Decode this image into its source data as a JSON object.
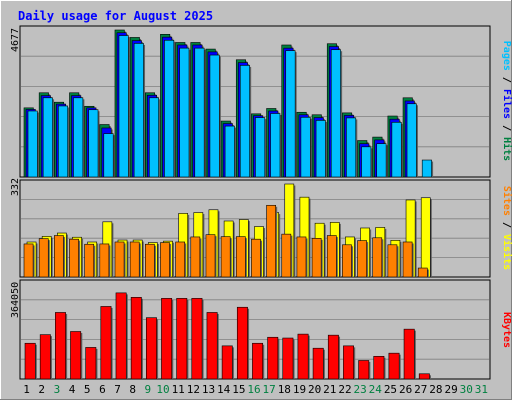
{
  "chart_data": [
    {
      "type": "bar",
      "title": "Daily usage for August 2025",
      "ylabel_parts": [
        {
          "text": "Pages",
          "color": "#00c0ff"
        },
        {
          "text": " / ",
          "color": "#000000"
        },
        {
          "text": "Files",
          "color": "#0000ff"
        },
        {
          "text": " / ",
          "color": "#000000"
        },
        {
          "text": "Hits",
          "color": "#008040"
        }
      ],
      "ymax_label": "4677",
      "ylim": [
        0,
        4677
      ],
      "categories": [
        "1",
        "2",
        "3",
        "4",
        "5",
        "6",
        "7",
        "8",
        "9",
        "10",
        "11",
        "12",
        "13",
        "14",
        "15",
        "16",
        "17",
        "18",
        "19",
        "20",
        "21",
        "22",
        "23",
        "24",
        "25",
        "26",
        "27",
        "28",
        "29",
        "30",
        "31"
      ],
      "series": [
        {
          "name": "Hits",
          "color": "#008040",
          "values": [
            2200,
            2680,
            2380,
            2680,
            2250,
            1670,
            4677,
            4440,
            2680,
            4540,
            4280,
            4280,
            4070,
            1780,
            3730,
            2010,
            2180,
            4200,
            2060,
            1980,
            4240,
            2040,
            1160,
            1270,
            1940,
            2520,
            0,
            0,
            0,
            0,
            0
          ]
        },
        {
          "name": "Files",
          "color": "#0000ff",
          "values": [
            2150,
            2590,
            2320,
            2590,
            2200,
            1560,
            4590,
            4340,
            2600,
            4450,
            4200,
            4200,
            3980,
            1700,
            3640,
            1950,
            2100,
            4100,
            1980,
            1890,
            4150,
            1960,
            1060,
            1180,
            1840,
            2420,
            0,
            0,
            0,
            0,
            0
          ]
        },
        {
          "name": "Pages",
          "color": "#00c0ff",
          "values": [
            2100,
            2520,
            2260,
            2520,
            2140,
            1380,
            4500,
            4250,
            2520,
            4350,
            4100,
            4100,
            3880,
            1620,
            3550,
            1890,
            2020,
            4020,
            1900,
            1800,
            4050,
            1880,
            960,
            1060,
            1740,
            2330,
            540,
            0,
            0,
            0,
            0
          ]
        }
      ]
    },
    {
      "type": "bar",
      "ylabel_parts": [
        {
          "text": "Sites",
          "color": "#ff8000"
        },
        {
          "text": " / ",
          "color": "#000000"
        },
        {
          "text": "Visits",
          "color": "#ffff00"
        }
      ],
      "ymax_label": "332",
      "ylim": [
        0,
        332
      ],
      "categories": [
        "1",
        "2",
        "3",
        "4",
        "5",
        "6",
        "7",
        "8",
        "9",
        "10",
        "11",
        "12",
        "13",
        "14",
        "15",
        "16",
        "17",
        "18",
        "19",
        "20",
        "21",
        "22",
        "23",
        "24",
        "25",
        "26",
        "27",
        "28",
        "29",
        "30",
        "31"
      ],
      "series": [
        {
          "name": "Visits",
          "color": "#ffff00",
          "values": [
            125,
            145,
            157,
            142,
            125,
            197,
            132,
            132,
            123,
            128,
            227,
            230,
            240,
            200,
            205,
            180,
            230,
            332,
            285,
            192,
            195,
            143,
            175,
            177,
            131,
            275,
            283,
            0,
            0,
            0,
            0
          ]
        },
        {
          "name": "Sites",
          "color": "#ff8000",
          "values": [
            118,
            137,
            148,
            135,
            117,
            118,
            125,
            125,
            117,
            123,
            125,
            143,
            151,
            144,
            144,
            135,
            256,
            153,
            143,
            138,
            148,
            115,
            130,
            140,
            115,
            125,
            32,
            0,
            0,
            0,
            0
          ]
        }
      ]
    },
    {
      "type": "bar",
      "ylabel_parts": [
        {
          "text": "KBytes",
          "color": "#ff0000"
        }
      ],
      "ymax_label": "364050",
      "ylim": [
        0,
        364050
      ],
      "categories": [
        "1",
        "2",
        "3",
        "4",
        "5",
        "6",
        "7",
        "8",
        "9",
        "10",
        "11",
        "12",
        "13",
        "14",
        "15",
        "16",
        "17",
        "18",
        "19",
        "20",
        "21",
        "22",
        "23",
        "24",
        "25",
        "26",
        "27",
        "28",
        "29",
        "30",
        "31"
      ],
      "series": [
        {
          "name": "KBytes",
          "color": "#ff0000",
          "values": [
            137000,
            170000,
            255000,
            182000,
            121000,
            278000,
            330000,
            313000,
            235000,
            309000,
            309000,
            309000,
            255000,
            127000,
            275000,
            137000,
            160000,
            157000,
            172000,
            118000,
            168000,
            127000,
            71000,
            87000,
            99000,
            191000,
            20000,
            0,
            0,
            0,
            0
          ]
        }
      ]
    }
  ],
  "x_label_colors": [
    "#000000",
    "#000000",
    "#008040",
    "#000000",
    "#000000",
    "#000000",
    "#000000",
    "#000000",
    "#008040",
    "#008040",
    "#000000",
    "#000000",
    "#000000",
    "#000000",
    "#000000",
    "#008040",
    "#008040",
    "#000000",
    "#000000",
    "#000000",
    "#000000",
    "#000000",
    "#008040",
    "#008040",
    "#000000",
    "#000000",
    "#000000",
    "#000000",
    "#000000",
    "#008040",
    "#008040"
  ]
}
